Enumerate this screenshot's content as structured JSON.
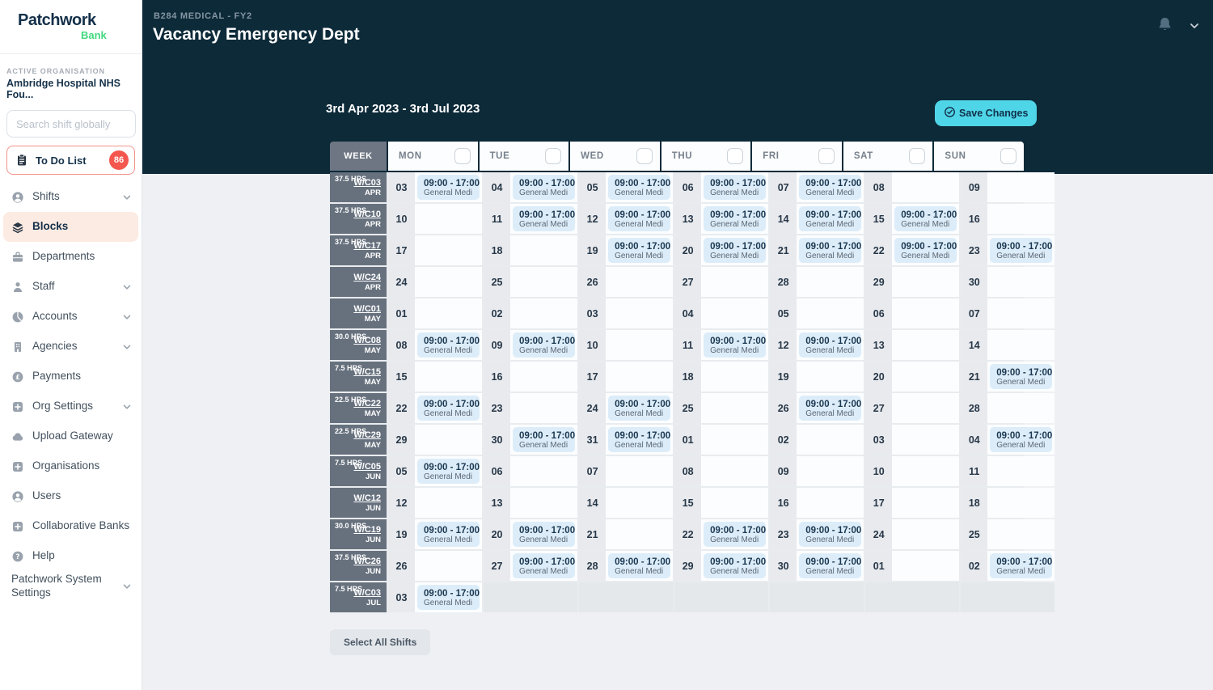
{
  "sidebar": {
    "logo": {
      "brand": "Patchwork",
      "sub": "Bank"
    },
    "active_org_label": "ACTIVE ORGANISATION",
    "active_org_name": "Ambridge Hospital NHS Fou...",
    "search_placeholder": "Search shift globally",
    "todo": {
      "label": "To Do List",
      "badge": "86",
      "icon": "clipboard"
    },
    "items": [
      {
        "id": "shifts",
        "label": "Shifts",
        "icon": "person-circle",
        "chevron": true
      },
      {
        "id": "blocks",
        "label": "Blocks",
        "icon": "layers",
        "active": true
      },
      {
        "id": "departments",
        "label": "Departments",
        "icon": "briefcase"
      },
      {
        "id": "staff",
        "label": "Staff",
        "icon": "person",
        "chevron": true
      },
      {
        "id": "accounts",
        "label": "Accounts",
        "icon": "pie",
        "chevron": true
      },
      {
        "id": "agencies",
        "label": "Agencies",
        "icon": "building",
        "chevron": true
      },
      {
        "id": "payments",
        "label": "Payments",
        "icon": "coin"
      },
      {
        "id": "org-settings",
        "label": "Org Settings",
        "icon": "plus-square",
        "chevron": true
      },
      {
        "id": "upload-gateway",
        "label": "Upload Gateway",
        "icon": "cloud"
      },
      {
        "id": "organisations",
        "label": "Organisations",
        "icon": "plus-square"
      },
      {
        "id": "users",
        "label": "Users",
        "icon": "person-circle"
      },
      {
        "id": "collaborative-banks",
        "label": "Collaborative Banks",
        "icon": "plus-square"
      },
      {
        "id": "help",
        "label": "Help",
        "icon": "question-circle"
      },
      {
        "id": "system-settings",
        "label": "Patchwork System Settings",
        "chevron": true
      }
    ]
  },
  "header": {
    "breadcrumb": "B284 MEDICAL - FY2",
    "title": "Vacancy Emergency Dept",
    "date_range": "3rd Apr 2023 - 3rd Jul 2023",
    "save_button": "Save Changes",
    "icons": [
      "bell-icon",
      "chevron-down-icon"
    ]
  },
  "table": {
    "week_header": "WEEK",
    "day_columns": [
      "MON",
      "TUE",
      "WED",
      "THU",
      "FRI",
      "SAT",
      "SUN"
    ],
    "shift_time": "09:00 - 17:00",
    "shift_label": "General Medi",
    "rows": [
      {
        "hours": "37.5 HRS",
        "week": "W/C03",
        "month": "APR",
        "days": [
          {
            "date": "03",
            "shift": true
          },
          {
            "date": "04",
            "shift": true
          },
          {
            "date": "05",
            "shift": true
          },
          {
            "date": "06",
            "shift": true
          },
          {
            "date": "07",
            "shift": true
          },
          {
            "date": "08",
            "shift": false
          },
          {
            "date": "09",
            "shift": false
          }
        ]
      },
      {
        "hours": "37.5 HRS",
        "week": "W/C10",
        "month": "APR",
        "days": [
          {
            "date": "10",
            "shift": false
          },
          {
            "date": "11",
            "shift": true
          },
          {
            "date": "12",
            "shift": true
          },
          {
            "date": "13",
            "shift": true
          },
          {
            "date": "14",
            "shift": true
          },
          {
            "date": "15",
            "shift": true
          },
          {
            "date": "16",
            "shift": false
          }
        ]
      },
      {
        "hours": "37.5 HRS",
        "week": "W/C17",
        "month": "APR",
        "days": [
          {
            "date": "17",
            "shift": false
          },
          {
            "date": "18",
            "shift": false
          },
          {
            "date": "19",
            "shift": true
          },
          {
            "date": "20",
            "shift": true
          },
          {
            "date": "21",
            "shift": true
          },
          {
            "date": "22",
            "shift": true
          },
          {
            "date": "23",
            "shift": true
          }
        ]
      },
      {
        "hours": "",
        "week": "W/C24",
        "month": "APR",
        "days": [
          {
            "date": "24",
            "shift": false
          },
          {
            "date": "25",
            "shift": false
          },
          {
            "date": "26",
            "shift": false
          },
          {
            "date": "27",
            "shift": false
          },
          {
            "date": "28",
            "shift": false
          },
          {
            "date": "29",
            "shift": false
          },
          {
            "date": "30",
            "shift": false
          }
        ]
      },
      {
        "hours": "",
        "week": "W/C01",
        "month": "MAY",
        "days": [
          {
            "date": "01",
            "shift": false
          },
          {
            "date": "02",
            "shift": false
          },
          {
            "date": "03",
            "shift": false
          },
          {
            "date": "04",
            "shift": false
          },
          {
            "date": "05",
            "shift": false
          },
          {
            "date": "06",
            "shift": false
          },
          {
            "date": "07",
            "shift": false
          }
        ]
      },
      {
        "hours": "30.0 HRS",
        "week": "W/C08",
        "month": "MAY",
        "days": [
          {
            "date": "08",
            "shift": true
          },
          {
            "date": "09",
            "shift": true
          },
          {
            "date": "10",
            "shift": false
          },
          {
            "date": "11",
            "shift": true
          },
          {
            "date": "12",
            "shift": true
          },
          {
            "date": "13",
            "shift": false
          },
          {
            "date": "14",
            "shift": false
          }
        ]
      },
      {
        "hours": "7.5 HRS",
        "week": "W/C15",
        "month": "MAY",
        "days": [
          {
            "date": "15",
            "shift": false
          },
          {
            "date": "16",
            "shift": false
          },
          {
            "date": "17",
            "shift": false
          },
          {
            "date": "18",
            "shift": false
          },
          {
            "date": "19",
            "shift": false
          },
          {
            "date": "20",
            "shift": false
          },
          {
            "date": "21",
            "shift": true
          }
        ]
      },
      {
        "hours": "22.5 HRS",
        "week": "W/C22",
        "month": "MAY",
        "days": [
          {
            "date": "22",
            "shift": true
          },
          {
            "date": "23",
            "shift": false
          },
          {
            "date": "24",
            "shift": true
          },
          {
            "date": "25",
            "shift": false
          },
          {
            "date": "26",
            "shift": true
          },
          {
            "date": "27",
            "shift": false
          },
          {
            "date": "28",
            "shift": false
          }
        ]
      },
      {
        "hours": "22.5 HRS",
        "week": "W/C29",
        "month": "MAY",
        "days": [
          {
            "date": "29",
            "shift": false
          },
          {
            "date": "30",
            "shift": true
          },
          {
            "date": "31",
            "shift": true
          },
          {
            "date": "01",
            "shift": false
          },
          {
            "date": "02",
            "shift": false
          },
          {
            "date": "03",
            "shift": false
          },
          {
            "date": "04",
            "shift": true
          }
        ]
      },
      {
        "hours": "7.5 HRS",
        "week": "W/C05",
        "month": "JUN",
        "days": [
          {
            "date": "05",
            "shift": true
          },
          {
            "date": "06",
            "shift": false
          },
          {
            "date": "07",
            "shift": false
          },
          {
            "date": "08",
            "shift": false
          },
          {
            "date": "09",
            "shift": false
          },
          {
            "date": "10",
            "shift": false
          },
          {
            "date": "11",
            "shift": false
          }
        ]
      },
      {
        "hours": "",
        "week": "W/C12",
        "month": "JUN",
        "days": [
          {
            "date": "12",
            "shift": false
          },
          {
            "date": "13",
            "shift": false
          },
          {
            "date": "14",
            "shift": false
          },
          {
            "date": "15",
            "shift": false
          },
          {
            "date": "16",
            "shift": false
          },
          {
            "date": "17",
            "shift": false
          },
          {
            "date": "18",
            "shift": false
          }
        ]
      },
      {
        "hours": "30.0 HRS",
        "week": "W/C19",
        "month": "JUN",
        "days": [
          {
            "date": "19",
            "shift": true
          },
          {
            "date": "20",
            "shift": true
          },
          {
            "date": "21",
            "shift": false
          },
          {
            "date": "22",
            "shift": true
          },
          {
            "date": "23",
            "shift": true
          },
          {
            "date": "24",
            "shift": false
          },
          {
            "date": "25",
            "shift": false
          }
        ]
      },
      {
        "hours": "37.5 HRS",
        "week": "W/C26",
        "month": "JUN",
        "days": [
          {
            "date": "26",
            "shift": false
          },
          {
            "date": "27",
            "shift": true
          },
          {
            "date": "28",
            "shift": true
          },
          {
            "date": "29",
            "shift": true
          },
          {
            "date": "30",
            "shift": true
          },
          {
            "date": "01",
            "shift": false
          },
          {
            "date": "02",
            "shift": true
          }
        ]
      },
      {
        "hours": "7.5 HRS",
        "week": "W/C03",
        "month": "JUL",
        "days": [
          {
            "date": "03",
            "shift": true
          },
          null,
          null,
          null,
          null,
          null,
          null
        ]
      }
    ]
  },
  "footer": {
    "select_all": "Select All Shifts"
  },
  "colors": {
    "navy": "#0D2A39",
    "accent_cyan": "#4FD5E8",
    "badge_red": "#F4574E",
    "todo_border": "#F2938A",
    "active_item_bg": "#FCEBE2",
    "brand_green": "#41D97E",
    "shift_chip_blue": "#DCEDF9",
    "week_cell_gray": "#67717E"
  }
}
